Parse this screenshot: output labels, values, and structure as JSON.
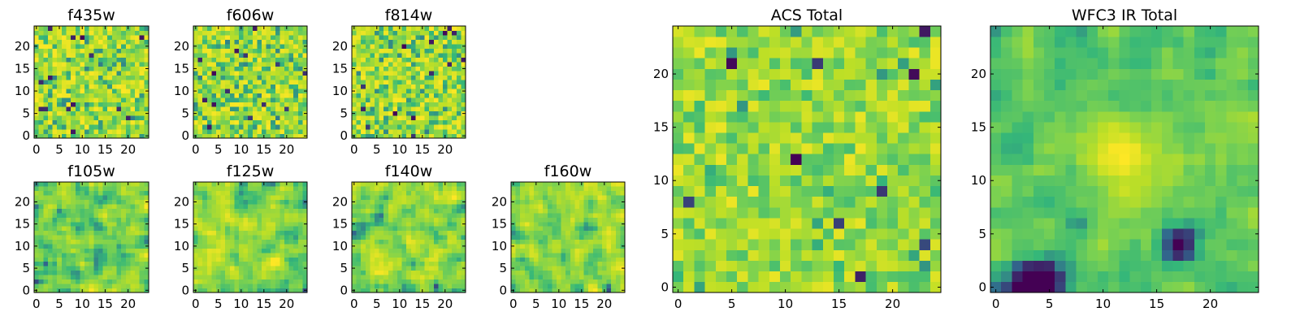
{
  "figure": {
    "colormap": "viridis",
    "colormap_stops": [
      "#440154",
      "#31688e",
      "#35b779",
      "#7ad151",
      "#bddf26",
      "#fde725"
    ],
    "background": "#ffffff"
  },
  "chart_data": [
    {
      "type": "heatmap",
      "title": "f435w",
      "grid": [
        25,
        25
      ],
      "xlim": [
        -0.5,
        24.5
      ],
      "ylim": [
        -0.5,
        24.5
      ],
      "xticks": [
        "0",
        "5",
        "10",
        "15",
        "20"
      ],
      "yticks": [
        "0",
        "5",
        "10",
        "15",
        "20"
      ],
      "texture": "noise",
      "seed": 11
    },
    {
      "type": "heatmap",
      "title": "f606w",
      "grid": [
        25,
        25
      ],
      "xlim": [
        -0.5,
        24.5
      ],
      "ylim": [
        -0.5,
        24.5
      ],
      "xticks": [
        "0",
        "5",
        "10",
        "15",
        "20"
      ],
      "yticks": [
        "0",
        "5",
        "10",
        "15",
        "20"
      ],
      "texture": "noise",
      "seed": 23
    },
    {
      "type": "heatmap",
      "title": "f814w",
      "grid": [
        25,
        25
      ],
      "xlim": [
        -0.5,
        24.5
      ],
      "ylim": [
        -0.5,
        24.5
      ],
      "xticks": [
        "0",
        "5",
        "10",
        "15",
        "20"
      ],
      "yticks": [
        "0",
        "5",
        "10",
        "15",
        "20"
      ],
      "texture": "noise",
      "seed": 37
    },
    {
      "type": "heatmap",
      "title": "f105w",
      "grid": [
        25,
        25
      ],
      "xlim": [
        -0.5,
        24.5
      ],
      "ylim": [
        -0.5,
        24.5
      ],
      "xticks": [
        "0",
        "5",
        "10",
        "15",
        "20"
      ],
      "yticks": [
        "0",
        "5",
        "10",
        "15",
        "20"
      ],
      "texture": "smooth",
      "seed": 41
    },
    {
      "type": "heatmap",
      "title": "f125w",
      "grid": [
        25,
        25
      ],
      "xlim": [
        -0.5,
        24.5
      ],
      "ylim": [
        -0.5,
        24.5
      ],
      "xticks": [
        "0",
        "5",
        "10",
        "15",
        "20"
      ],
      "yticks": [
        "0",
        "5",
        "10",
        "15",
        "20"
      ],
      "texture": "smooth",
      "seed": 53
    },
    {
      "type": "heatmap",
      "title": "f140w",
      "grid": [
        25,
        25
      ],
      "xlim": [
        -0.5,
        24.5
      ],
      "ylim": [
        -0.5,
        24.5
      ],
      "xticks": [
        "0",
        "5",
        "10",
        "15",
        "20"
      ],
      "yticks": [
        "0",
        "5",
        "10",
        "15",
        "20"
      ],
      "texture": "smooth",
      "seed": 67
    },
    {
      "type": "heatmap",
      "title": "f160w",
      "grid": [
        25,
        25
      ],
      "xlim": [
        -0.5,
        24.5
      ],
      "ylim": [
        -0.5,
        24.5
      ],
      "xticks": [
        "0",
        "5",
        "10",
        "15",
        "20"
      ],
      "yticks": [
        "0",
        "5",
        "10",
        "15",
        "20"
      ],
      "texture": "smooth",
      "seed": 79
    },
    {
      "type": "heatmap",
      "title": "ACS Total",
      "grid": [
        25,
        25
      ],
      "xlim": [
        -0.5,
        24.5
      ],
      "ylim": [
        -0.5,
        24.5
      ],
      "xticks": [
        "0",
        "5",
        "10",
        "15",
        "20"
      ],
      "yticks": [
        "0",
        "5",
        "10",
        "15",
        "20"
      ],
      "texture": "mid",
      "seed": 83
    },
    {
      "type": "heatmap",
      "title": "WFC3 IR Total",
      "grid": [
        25,
        25
      ],
      "xlim": [
        -0.5,
        24.5
      ],
      "ylim": [
        -0.5,
        24.5
      ],
      "xticks": [
        "0",
        "5",
        "10",
        "15",
        "20"
      ],
      "yticks": [
        "0",
        "5",
        "10",
        "15",
        "20"
      ],
      "texture": "blob",
      "seed": 97
    }
  ]
}
